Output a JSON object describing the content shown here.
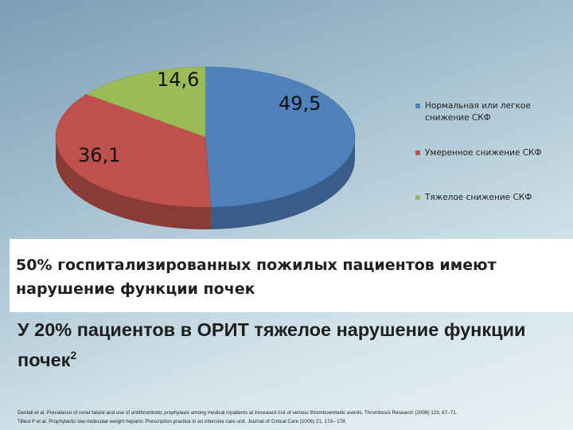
{
  "chart_data": {
    "type": "pie",
    "style": "3d",
    "categories": [
      "Нормальная или легкое снижение СКФ",
      "Умеренное снижение СКФ",
      "Тяжелое снижение СКФ"
    ],
    "values": [
      49.5,
      36.1,
      14.6
    ],
    "data_labels": [
      "49,5",
      "36,1",
      "14,6"
    ],
    "colors": [
      "#4f81bd",
      "#c0504d",
      "#9bbb59"
    ],
    "legend_position": "right",
    "title": ""
  },
  "legend": {
    "items": [
      {
        "label": "Нормальная или легкое снижение СКФ",
        "color": "#4f81bd"
      },
      {
        "label": "Умеренное снижение СКФ",
        "color": "#c0504d"
      },
      {
        "label": "Тяжелое снижение СКФ",
        "color": "#9bbb59"
      }
    ]
  },
  "text": {
    "caption_1": "50% госпитализированных пожилых пациентов имеют нарушение функции почек",
    "caption_2": "У 20% пациентов в ОРИТ тяжелое нарушение функции почек",
    "caption_2_sup": "2",
    "reference_1": "Dentali et al. Prevalence of renal failure and use of antithrombotic prophylaxis among medical inpatients at increased risk of venous thromboembolic events. Thrombosis Research (2008) 123, 67–71.",
    "reference_2": "Tilleul P et al. Prophylactic low-molecular-weight heparin: Prescription practice in an intensive care unit. Journal of Critical Care (2006) 21, 173– 178."
  }
}
